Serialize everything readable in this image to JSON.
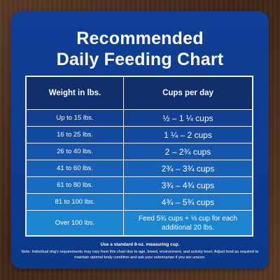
{
  "title": {
    "line1": "Recommended",
    "line2": "Daily Feeding Chart"
  },
  "table": {
    "headers": {
      "weight": "Weight in lbs.",
      "cups": "Cups per day"
    },
    "rows": [
      {
        "weight": "Up to 15 lbs.",
        "cups": "½ – 1 ¼ cups"
      },
      {
        "weight": "16 to 25 lbs.",
        "cups": "1 ¼ –  2 cups"
      },
      {
        "weight": "26 to 40 lbs.",
        "cups": "2 – 2¾ cups"
      },
      {
        "weight": "41 to 60 lbs.",
        "cups": "2¾ – 3¾ cups"
      },
      {
        "weight": "61 to 80 lbs.",
        "cups": "3¾ – 4¾ cups"
      },
      {
        "weight": "81 to 100 lbs.",
        "cups": "4¾ – 5¾ cups"
      },
      {
        "weight": "Over 100 lbs.",
        "cups": "Feed 5¾ cups + ⅓ cup for each additional 20 lbs."
      }
    ]
  },
  "footer": {
    "measure_note": "Use a standard 8-oz. measuring cup.",
    "disclaimer": "Note: Individual dog's requirements may vary from this chart due to age, breed, environment, and activity level. Adjust food as required to maintain optimal body condition and ask your veterinarian if you are unsure."
  },
  "colors": {
    "card_background": "#0f3f96",
    "header_row": "#0f2e6b",
    "light_row": "#1c86d2",
    "border": "#e9eef8",
    "wood_background": "#4a2f1c"
  }
}
